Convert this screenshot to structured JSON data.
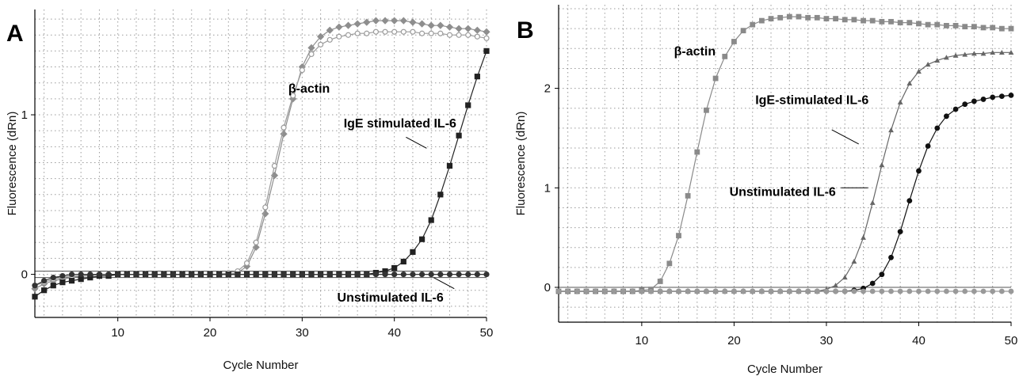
{
  "chart_data": [
    {
      "panel_label": "A",
      "type": "line",
      "xlabel": "Cycle Number",
      "ylabel": "Fluorescence (dRn)",
      "xlim": [
        1,
        50
      ],
      "ylim": [
        -0.27,
        1.66
      ],
      "x_ticks": [
        10,
        20,
        30,
        40,
        50
      ],
      "y_ticks": [
        0,
        1
      ],
      "grid": true,
      "annotations": [
        {
          "text": "β-actin",
          "x": 28.5,
          "y": 1.14,
          "arrow_to": null
        },
        {
          "text": "IgE stimulated IL-6",
          "x": 34.5,
          "y": 0.92,
          "arrow_to": [
            43.5,
            0.79
          ]
        },
        {
          "text": "Unstimulated IL-6",
          "x": 33.8,
          "y": -0.17,
          "arrow_to": [
            46.5,
            -0.09
          ]
        }
      ],
      "series": [
        {
          "marker": "diamond",
          "color": "#8e8e8e",
          "x": [
            1,
            2,
            3,
            4,
            5,
            6,
            7,
            8,
            9,
            10,
            11,
            12,
            13,
            14,
            15,
            16,
            17,
            18,
            19,
            20,
            21,
            22,
            23,
            24,
            25,
            26,
            27,
            28,
            29,
            30,
            31,
            32,
            33,
            34,
            35,
            36,
            37,
            38,
            39,
            40,
            41,
            42,
            43,
            44,
            45,
            46,
            47,
            48,
            49,
            50
          ],
          "y": [
            -0.09,
            -0.06,
            -0.04,
            -0.03,
            -0.02,
            -0.01,
            -0.01,
            0,
            0,
            0,
            0,
            0,
            0,
            0,
            0,
            0,
            0,
            0,
            0,
            0,
            0,
            0,
            0.01,
            0.05,
            0.17,
            0.38,
            0.62,
            0.88,
            1.1,
            1.3,
            1.42,
            1.49,
            1.53,
            1.55,
            1.56,
            1.57,
            1.58,
            1.59,
            1.59,
            1.59,
            1.59,
            1.58,
            1.57,
            1.56,
            1.56,
            1.55,
            1.54,
            1.54,
            1.53,
            1.52
          ]
        },
        {
          "marker": "circle-open",
          "color": "#9c9c9c",
          "x": [
            1,
            2,
            3,
            4,
            5,
            6,
            7,
            8,
            9,
            10,
            11,
            12,
            13,
            14,
            15,
            16,
            17,
            18,
            19,
            20,
            21,
            22,
            23,
            24,
            25,
            26,
            27,
            28,
            29,
            30,
            31,
            32,
            33,
            34,
            35,
            36,
            37,
            38,
            39,
            40,
            41,
            42,
            43,
            44,
            45,
            46,
            47,
            48,
            49,
            50
          ],
          "y": [
            -0.07,
            -0.05,
            -0.03,
            -0.02,
            -0.01,
            -0.01,
            0,
            0,
            0,
            0,
            0,
            0,
            0,
            0,
            0,
            0,
            0,
            0,
            0,
            0,
            0,
            0.01,
            0.02,
            0.07,
            0.2,
            0.42,
            0.68,
            0.92,
            1.12,
            1.28,
            1.38,
            1.44,
            1.47,
            1.49,
            1.5,
            1.51,
            1.51,
            1.52,
            1.52,
            1.52,
            1.52,
            1.52,
            1.51,
            1.51,
            1.51,
            1.5,
            1.5,
            1.5,
            1.49,
            1.48
          ]
        },
        {
          "marker": "square",
          "color": "#222222",
          "x": [
            1,
            2,
            3,
            4,
            5,
            6,
            7,
            8,
            9,
            10,
            11,
            12,
            13,
            14,
            15,
            16,
            17,
            18,
            19,
            20,
            21,
            22,
            23,
            24,
            25,
            26,
            27,
            28,
            29,
            30,
            31,
            32,
            33,
            34,
            35,
            36,
            37,
            38,
            39,
            40,
            41,
            42,
            43,
            44,
            45,
            46,
            47,
            48,
            49,
            50
          ],
          "y": [
            -0.14,
            -0.1,
            -0.07,
            -0.05,
            -0.04,
            -0.03,
            -0.02,
            -0.01,
            -0.01,
            0,
            0,
            0,
            0,
            0,
            0,
            0,
            0,
            0,
            0,
            0,
            0,
            0,
            0,
            0,
            0,
            0,
            0,
            0,
            0,
            0,
            0,
            0,
            0,
            0,
            0,
            0,
            0,
            0.01,
            0.02,
            0.04,
            0.08,
            0.14,
            0.22,
            0.34,
            0.5,
            0.68,
            0.87,
            1.06,
            1.24,
            1.4
          ]
        },
        {
          "marker": "circle",
          "color": "#333333",
          "x": [
            1,
            2,
            3,
            4,
            5,
            6,
            7,
            8,
            9,
            10,
            11,
            12,
            13,
            14,
            15,
            16,
            17,
            18,
            19,
            20,
            21,
            22,
            23,
            24,
            25,
            26,
            27,
            28,
            29,
            30,
            31,
            32,
            33,
            34,
            35,
            36,
            37,
            38,
            39,
            40,
            41,
            42,
            43,
            44,
            45,
            46,
            47,
            48,
            49,
            50
          ],
          "y": [
            -0.07,
            -0.04,
            -0.02,
            -0.01,
            0,
            0,
            0,
            0,
            0,
            0,
            0,
            0,
            0,
            0,
            0,
            0,
            0,
            0,
            0,
            0,
            0,
            0,
            0,
            0,
            0,
            0,
            0,
            0,
            0,
            0,
            0,
            0,
            0,
            0,
            0,
            0,
            0,
            0,
            0,
            0,
            0,
            0,
            0,
            0,
            0,
            0,
            0,
            0,
            0,
            0
          ]
        }
      ]
    },
    {
      "panel_label": "B",
      "type": "line",
      "xlabel": "Cycle Number",
      "ylabel": "Fluorescence (dRn)",
      "xlim": [
        1,
        50
      ],
      "ylim": [
        -0.35,
        2.84
      ],
      "x_ticks": [
        10,
        20,
        30,
        40,
        50
      ],
      "y_ticks": [
        0,
        1,
        2
      ],
      "grid": true,
      "annotations": [
        {
          "text": "β-actin",
          "x": 13.5,
          "y": 2.33,
          "arrow_to": null
        },
        {
          "text": "IgE-stimulated IL-6",
          "x": 22.3,
          "y": 1.84,
          "arrow_to": [
            33.5,
            1.44
          ]
        },
        {
          "text": "Unstimulated IL-6",
          "x": 19.5,
          "y": 0.92,
          "arrow_to": [
            34.5,
            1.0
          ]
        }
      ],
      "series": [
        {
          "marker": "square",
          "color": "#8a8a8a",
          "x": [
            1,
            2,
            3,
            4,
            5,
            6,
            7,
            8,
            9,
            10,
            11,
            12,
            13,
            14,
            15,
            16,
            17,
            18,
            19,
            20,
            21,
            22,
            23,
            24,
            25,
            26,
            27,
            28,
            29,
            30,
            31,
            32,
            33,
            34,
            35,
            36,
            37,
            38,
            39,
            40,
            41,
            42,
            43,
            44,
            45,
            46,
            47,
            48,
            49,
            50
          ],
          "y": [
            -0.04,
            -0.04,
            -0.04,
            -0.04,
            -0.04,
            -0.04,
            -0.04,
            -0.04,
            -0.04,
            -0.03,
            -0.02,
            0.06,
            0.24,
            0.52,
            0.92,
            1.36,
            1.78,
            2.1,
            2.32,
            2.47,
            2.58,
            2.64,
            2.68,
            2.7,
            2.71,
            2.72,
            2.72,
            2.71,
            2.71,
            2.7,
            2.7,
            2.69,
            2.69,
            2.68,
            2.68,
            2.67,
            2.67,
            2.66,
            2.66,
            2.65,
            2.64,
            2.64,
            2.63,
            2.63,
            2.62,
            2.62,
            2.61,
            2.61,
            2.6,
            2.6
          ]
        },
        {
          "marker": "triangle",
          "color": "#666666",
          "x": [
            1,
            2,
            3,
            4,
            5,
            6,
            7,
            8,
            9,
            10,
            11,
            12,
            13,
            14,
            15,
            16,
            17,
            18,
            19,
            20,
            21,
            22,
            23,
            24,
            25,
            26,
            27,
            28,
            29,
            30,
            31,
            32,
            33,
            34,
            35,
            36,
            37,
            38,
            39,
            40,
            41,
            42,
            43,
            44,
            45,
            46,
            47,
            48,
            49,
            50
          ],
          "y": [
            -0.04,
            -0.04,
            -0.04,
            -0.04,
            -0.04,
            -0.04,
            -0.04,
            -0.04,
            -0.04,
            -0.04,
            -0.04,
            -0.04,
            -0.04,
            -0.04,
            -0.04,
            -0.04,
            -0.04,
            -0.04,
            -0.04,
            -0.04,
            -0.04,
            -0.04,
            -0.04,
            -0.04,
            -0.04,
            -0.04,
            -0.04,
            -0.04,
            -0.04,
            -0.02,
            0.02,
            0.1,
            0.26,
            0.5,
            0.85,
            1.23,
            1.58,
            1.86,
            2.05,
            2.17,
            2.24,
            2.28,
            2.31,
            2.33,
            2.34,
            2.35,
            2.35,
            2.36,
            2.36,
            2.36
          ]
        },
        {
          "marker": "circle",
          "color": "#111111",
          "x": [
            1,
            2,
            3,
            4,
            5,
            6,
            7,
            8,
            9,
            10,
            11,
            12,
            13,
            14,
            15,
            16,
            17,
            18,
            19,
            20,
            21,
            22,
            23,
            24,
            25,
            26,
            27,
            28,
            29,
            30,
            31,
            32,
            33,
            34,
            35,
            36,
            37,
            38,
            39,
            40,
            41,
            42,
            43,
            44,
            45,
            46,
            47,
            48,
            49,
            50
          ],
          "y": [
            -0.04,
            -0.04,
            -0.04,
            -0.04,
            -0.04,
            -0.04,
            -0.04,
            -0.04,
            -0.04,
            -0.04,
            -0.04,
            -0.04,
            -0.04,
            -0.04,
            -0.04,
            -0.04,
            -0.04,
            -0.04,
            -0.04,
            -0.04,
            -0.04,
            -0.04,
            -0.04,
            -0.04,
            -0.04,
            -0.04,
            -0.04,
            -0.04,
            -0.04,
            -0.04,
            -0.04,
            -0.04,
            -0.03,
            -0.01,
            0.04,
            0.13,
            0.3,
            0.56,
            0.87,
            1.17,
            1.42,
            1.6,
            1.72,
            1.79,
            1.84,
            1.87,
            1.89,
            1.91,
            1.92,
            1.93
          ]
        },
        {
          "marker": "circle",
          "color": "#999999",
          "x": [
            1,
            2,
            3,
            4,
            5,
            6,
            7,
            8,
            9,
            10,
            11,
            12,
            13,
            14,
            15,
            16,
            17,
            18,
            19,
            20,
            21,
            22,
            23,
            24,
            25,
            26,
            27,
            28,
            29,
            30,
            31,
            32,
            33,
            34,
            35,
            36,
            37,
            38,
            39,
            40,
            41,
            42,
            43,
            44,
            45,
            46,
            47,
            48,
            49,
            50
          ],
          "y": [
            -0.04,
            -0.04,
            -0.04,
            -0.04,
            -0.04,
            -0.04,
            -0.04,
            -0.04,
            -0.04,
            -0.04,
            -0.04,
            -0.04,
            -0.04,
            -0.04,
            -0.04,
            -0.04,
            -0.04,
            -0.04,
            -0.04,
            -0.04,
            -0.04,
            -0.04,
            -0.04,
            -0.04,
            -0.04,
            -0.04,
            -0.04,
            -0.04,
            -0.04,
            -0.04,
            -0.04,
            -0.04,
            -0.04,
            -0.04,
            -0.04,
            -0.04,
            -0.04,
            -0.04,
            -0.04,
            -0.04,
            -0.04,
            -0.04,
            -0.04,
            -0.04,
            -0.04,
            -0.04,
            -0.04,
            -0.04,
            -0.04,
            -0.04
          ]
        }
      ]
    }
  ]
}
